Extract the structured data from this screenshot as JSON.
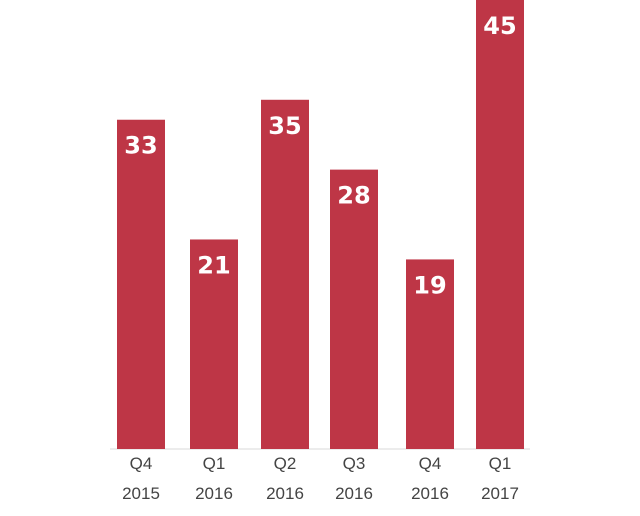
{
  "chart_data": {
    "type": "bar",
    "categories": [
      [
        "Q4",
        "2015"
      ],
      [
        "Q1",
        "2016"
      ],
      [
        "Q2",
        "2016"
      ],
      [
        "Q3",
        "2016"
      ],
      [
        "Q4",
        "2016"
      ],
      [
        "Q1",
        "2017"
      ]
    ],
    "values": [
      33,
      21,
      35,
      28,
      19,
      45
    ],
    "data_labels": [
      "33",
      "21",
      "35",
      "28",
      "19",
      "45"
    ],
    "title": "",
    "xlabel": "",
    "ylabel": "",
    "ylim": [
      0,
      45
    ],
    "grid": false,
    "legend": "none",
    "bar_color": "#BE3646",
    "label_color": "#FFFFFF",
    "tick_color": "#444444"
  }
}
